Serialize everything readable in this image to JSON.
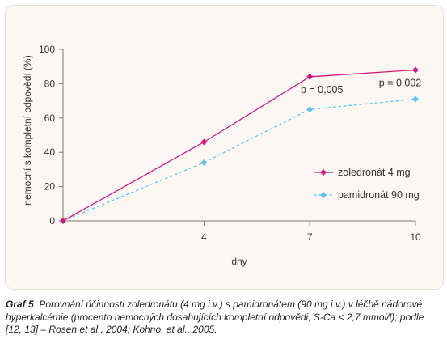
{
  "chart_data": {
    "type": "line",
    "x": [
      0,
      4,
      7,
      10
    ],
    "x_ticks": [
      "4",
      "7",
      "10"
    ],
    "xlabel": "dny",
    "ylabel": "nemocní s kompletní odpovědí (%)",
    "ylim": [
      0,
      100
    ],
    "y_ticks": [
      "0",
      "20",
      "40",
      "60",
      "80",
      "100"
    ],
    "grid": false,
    "legend_position": "right",
    "series": [
      {
        "name": "zoledronát 4 mg",
        "values": [
          0,
          46,
          84,
          88
        ],
        "color": "#d6187e",
        "line_style": "solid",
        "marker": "diamond"
      },
      {
        "name": "pamidronát 90 mg",
        "values": [
          0,
          34,
          65,
          71
        ],
        "color": "#5cc4ee",
        "line_style": "dashed",
        "marker": "diamond"
      }
    ],
    "annotations": [
      {
        "text": "p = 0,005",
        "x": 7
      },
      {
        "text": "p = 0,002",
        "x": 10
      }
    ]
  },
  "caption": {
    "label": "Graf 5",
    "text": "Porovnání účinnosti zoledronátu (4 mg i.v.) s pamidronátem (90 mg i.v.) v léčbě nádorové hyperkalcémie (procento nemocných dosahujících kompletní odpovědi, S-Ca < 2,7 mmol/l); podle [12, 13] – Rosen et al., 2004; Kohno, et al., 2005."
  }
}
